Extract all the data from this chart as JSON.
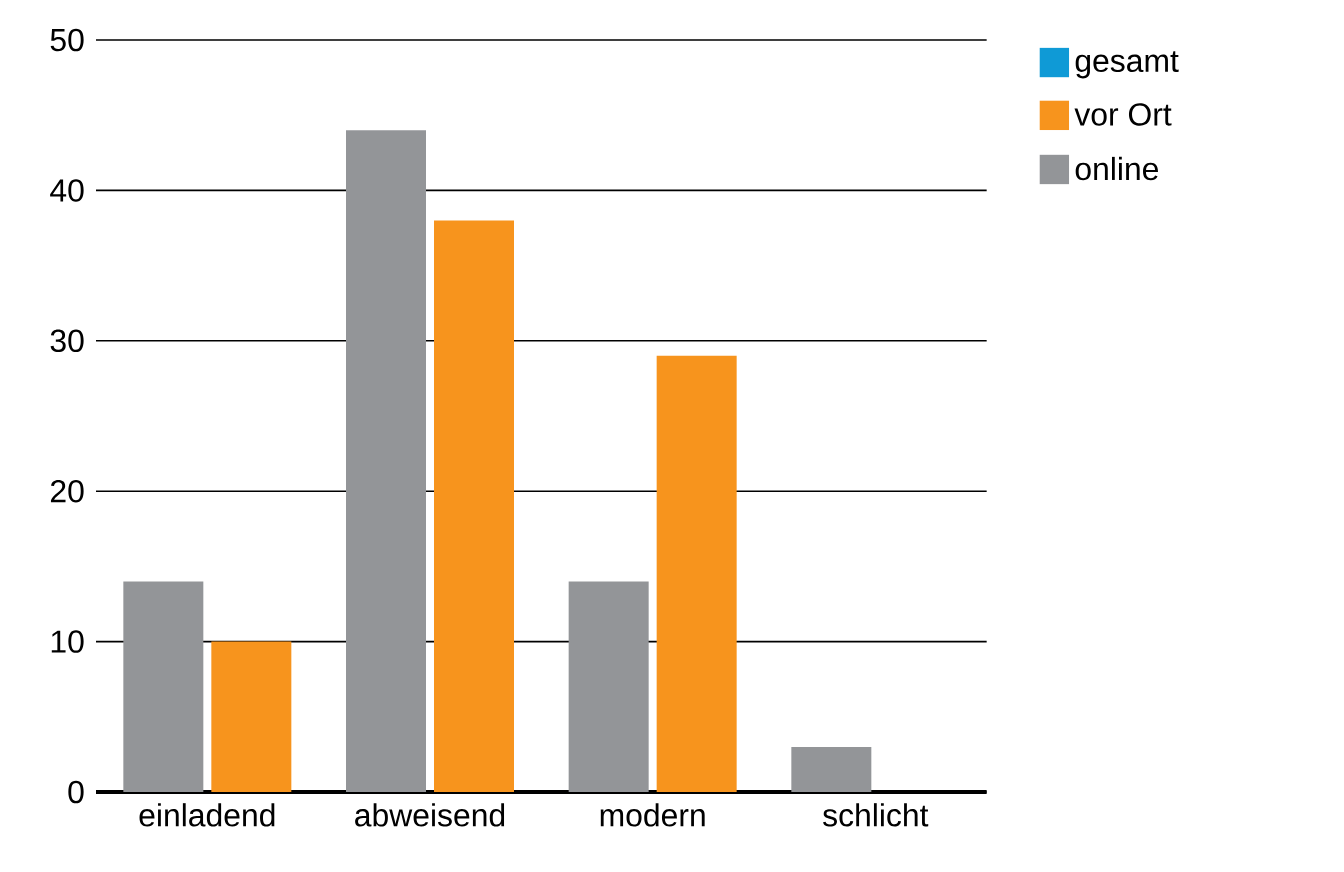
{
  "chart_data": {
    "type": "bar",
    "categories": [
      "einladend",
      "abweisend",
      "modern",
      "schlicht"
    ],
    "series": [
      {
        "name": "gesamt",
        "color": "#0f9ad6",
        "values": [
          null,
          null,
          null,
          null
        ]
      },
      {
        "name": "vor Ort",
        "color": "#f7941d",
        "values": [
          10,
          38,
          29,
          0
        ]
      },
      {
        "name": "online",
        "color": "#939598",
        "values": [
          14,
          44,
          14,
          3
        ]
      }
    ],
    "ylim": [
      0,
      50
    ],
    "yticks": [
      0,
      10,
      20,
      30,
      40,
      50
    ],
    "grid": "y",
    "legend": "top right"
  }
}
